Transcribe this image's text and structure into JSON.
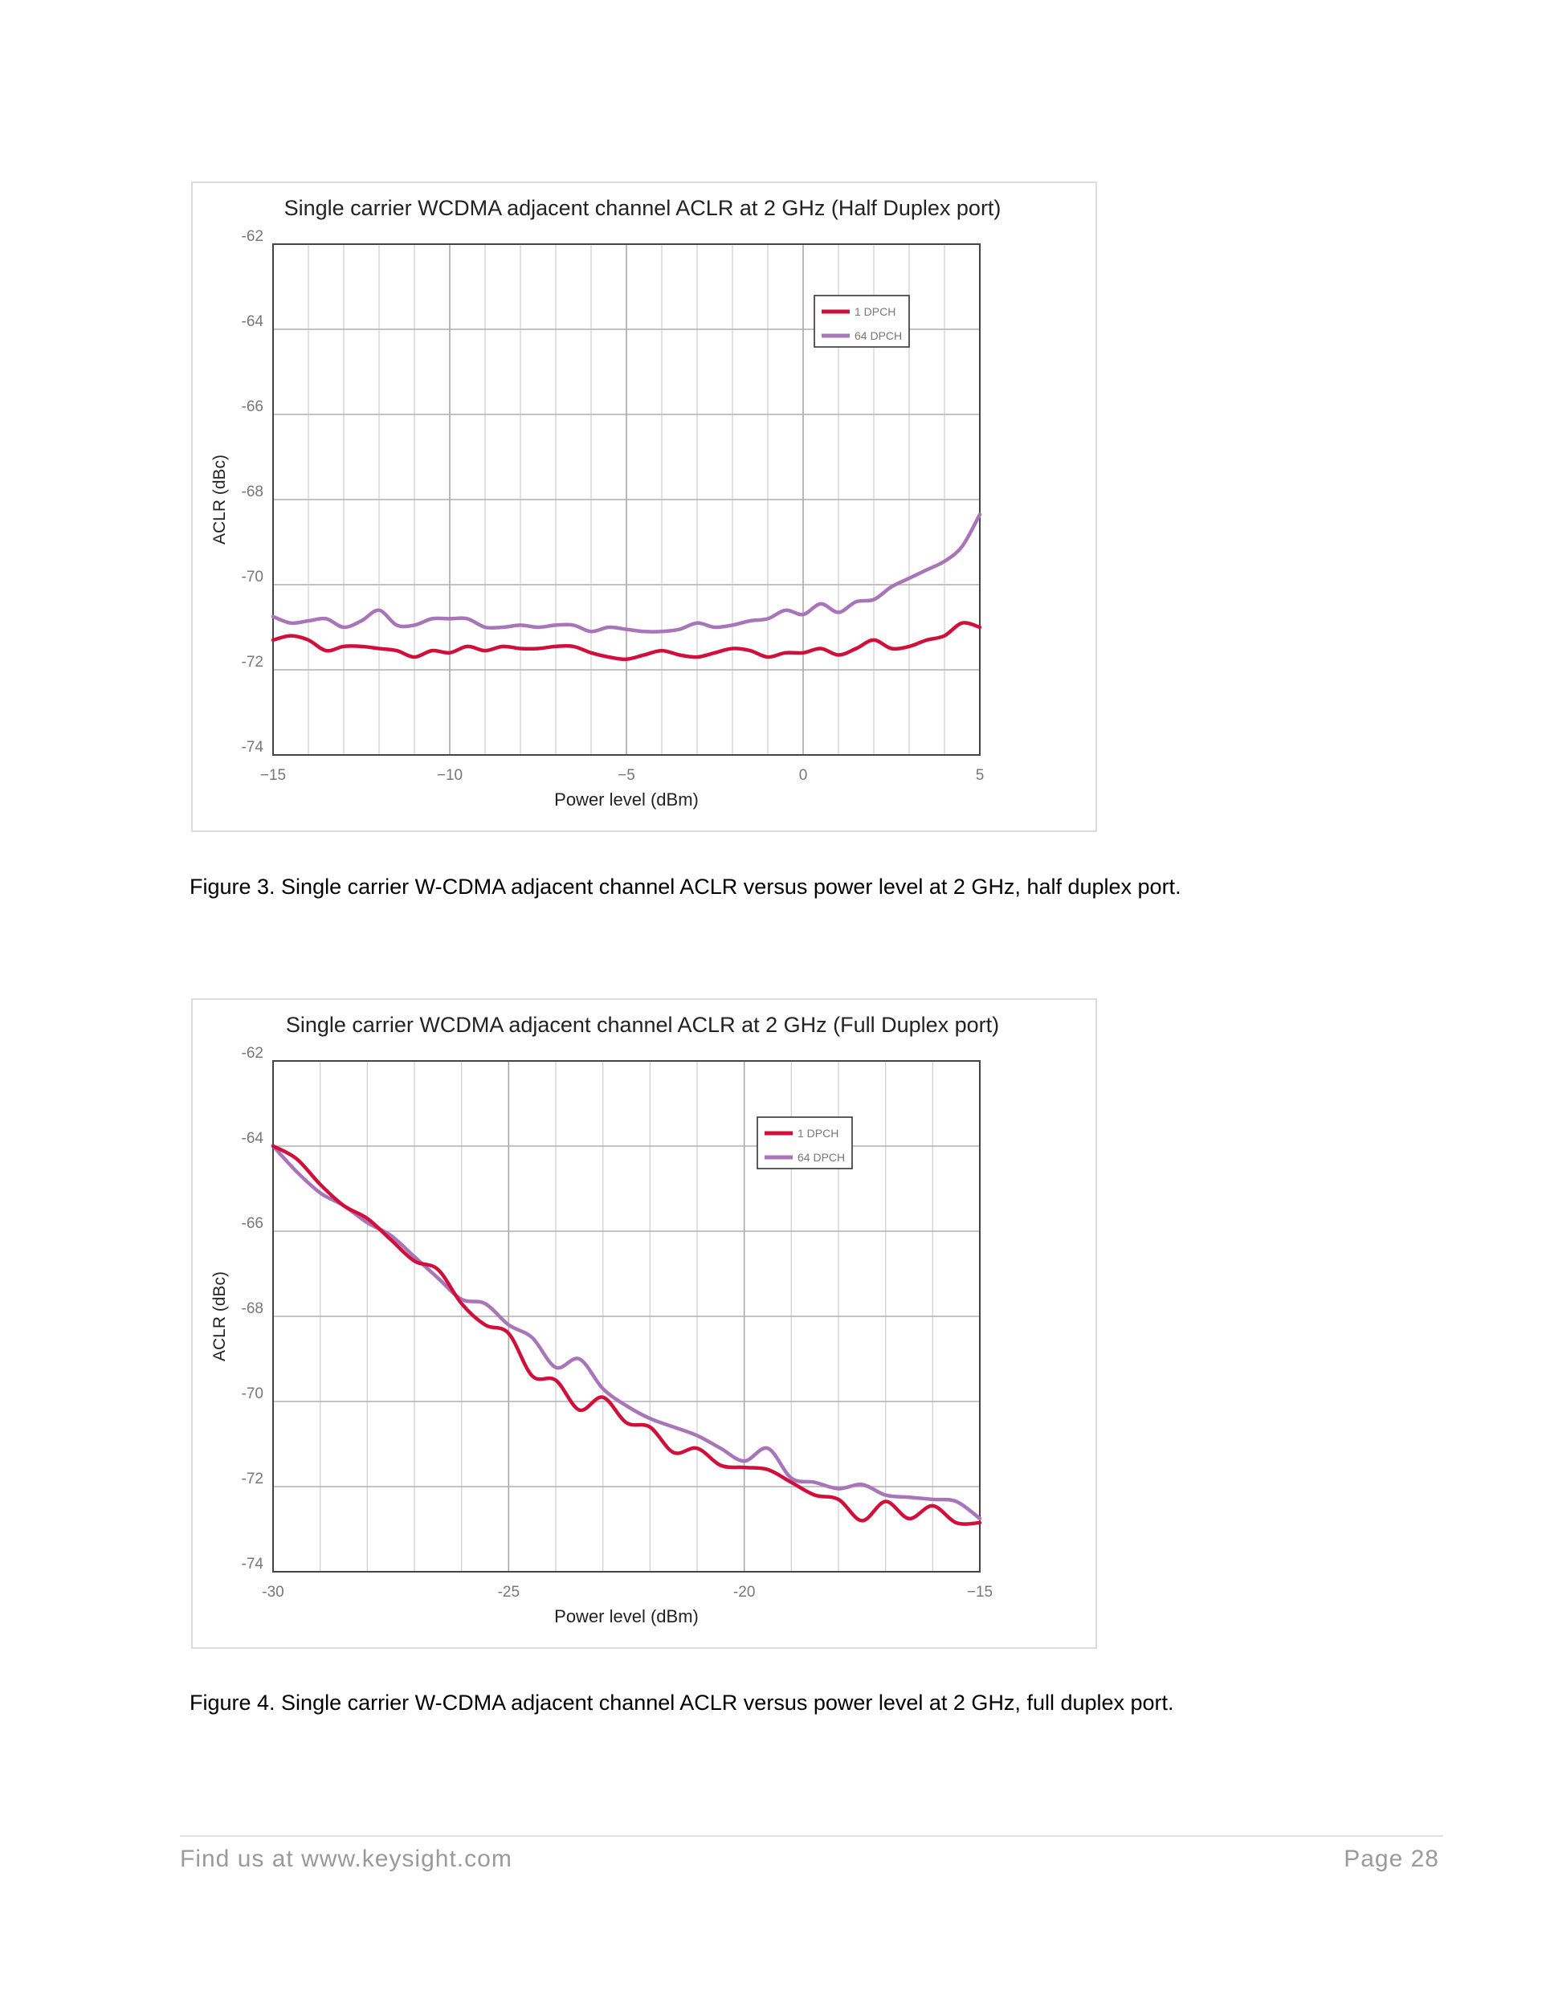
{
  "chart_data": [
    {
      "type": "line",
      "title": "Single carrier WCDMA adjacent channel ACLR at 2 GHz (Half Duplex port)",
      "xlabel": "Power level (dBm)",
      "ylabel": "ACLR (dBc)",
      "xlim": [
        -15,
        5
      ],
      "ylim": [
        -74,
        -62
      ],
      "xticks": [
        -15,
        -10,
        -5,
        0,
        5
      ],
      "xtick_labels": [
        "−15",
        "−10",
        "−5",
        "0",
        "5"
      ],
      "yticks": [
        -62,
        -64,
        -66,
        -68,
        -70,
        -72,
        -74
      ],
      "ytick_labels": [
        "-62",
        "-64",
        "-66",
        "-68",
        "-70",
        "-72",
        "-74"
      ],
      "grid": true,
      "legend_position": "top-right",
      "series": [
        {
          "name": "1 DPCH",
          "color": "#d0103a",
          "x": [
            -15,
            -14.5,
            -14,
            -13.5,
            -13,
            -12.5,
            -12,
            -11.5,
            -11,
            -10.5,
            -10,
            -9.5,
            -9,
            -8.5,
            -8,
            -7.5,
            -7,
            -6.5,
            -6,
            -5.5,
            -5,
            -4.5,
            -4,
            -3.5,
            -3,
            -2.5,
            -2,
            -1.5,
            -1,
            -0.5,
            0,
            0.5,
            1,
            1.5,
            2,
            2.5,
            3,
            3.5,
            4,
            4.5,
            5
          ],
          "y": [
            -71.3,
            -71.2,
            -71.3,
            -71.55,
            -71.45,
            -71.45,
            -71.5,
            -71.55,
            -71.7,
            -71.55,
            -71.6,
            -71.45,
            -71.55,
            -71.45,
            -71.5,
            -71.5,
            -71.45,
            -71.45,
            -71.6,
            -71.7,
            -71.75,
            -71.65,
            -71.55,
            -71.65,
            -71.7,
            -71.6,
            -71.5,
            -71.55,
            -71.7,
            -71.6,
            -71.6,
            -71.5,
            -71.65,
            -71.5,
            -71.3,
            -71.5,
            -71.45,
            -71.3,
            -71.2,
            -70.9,
            -71.0
          ]
        },
        {
          "name": "64 DPCH",
          "color": "#a875b8",
          "x": [
            -15,
            -14.5,
            -14,
            -13.5,
            -13,
            -12.5,
            -12,
            -11.5,
            -11,
            -10.5,
            -10,
            -9.5,
            -9,
            -8.5,
            -8,
            -7.5,
            -7,
            -6.5,
            -6,
            -5.5,
            -5,
            -4.5,
            -4,
            -3.5,
            -3,
            -2.5,
            -2,
            -1.5,
            -1,
            -0.5,
            0,
            0.5,
            1,
            1.5,
            2,
            2.5,
            3,
            3.5,
            4,
            4.5,
            5
          ],
          "y": [
            -70.75,
            -70.9,
            -70.85,
            -70.8,
            -71.0,
            -70.85,
            -70.6,
            -70.95,
            -70.95,
            -70.8,
            -70.8,
            -70.8,
            -71.0,
            -71.0,
            -70.95,
            -71.0,
            -70.95,
            -70.95,
            -71.1,
            -71.0,
            -71.05,
            -71.1,
            -71.1,
            -71.05,
            -70.9,
            -71.0,
            -70.95,
            -70.85,
            -70.8,
            -70.6,
            -70.7,
            -70.45,
            -70.65,
            -70.4,
            -70.35,
            -70.05,
            -69.85,
            -69.65,
            -69.45,
            -69.1,
            -68.35
          ]
        }
      ]
    },
    {
      "type": "line",
      "title": "Single carrier WCDMA adjacent channel ACLR at 2 GHz (Full Duplex port)",
      "xlabel": "Power level (dBm)",
      "ylabel": "ACLR (dBc)",
      "xlim": [
        -30,
        -15
      ],
      "ylim": [
        -74,
        -62
      ],
      "xticks": [
        -30,
        -25,
        -20,
        -15
      ],
      "xtick_labels": [
        "-30",
        "-25",
        "-20",
        "−15"
      ],
      "yticks": [
        -62,
        -64,
        -66,
        -68,
        -70,
        -72,
        -74
      ],
      "ytick_labels": [
        "-62",
        "-64",
        "-66",
        "-68",
        "-70",
        "-72",
        "-74"
      ],
      "grid": true,
      "legend_position": "top-right",
      "series": [
        {
          "name": "1 DPCH",
          "color": "#d0103a",
          "x": [
            -30,
            -29.5,
            -29,
            -28.5,
            -28,
            -27.5,
            -27,
            -26.5,
            -26,
            -25.5,
            -25,
            -24.5,
            -24,
            -23.5,
            -23,
            -22.5,
            -22,
            -21.5,
            -21,
            -20.5,
            -20,
            -19.5,
            -19,
            -18.5,
            -18,
            -17.5,
            -17,
            -16.5,
            -16,
            -15.5,
            -15
          ],
          "y": [
            -64.0,
            -64.3,
            -64.9,
            -65.4,
            -65.7,
            -66.2,
            -66.7,
            -66.9,
            -67.7,
            -68.2,
            -68.4,
            -69.4,
            -69.5,
            -70.2,
            -69.9,
            -70.5,
            -70.6,
            -71.2,
            -71.1,
            -71.5,
            -71.55,
            -71.6,
            -71.9,
            -72.2,
            -72.3,
            -72.8,
            -72.35,
            -72.75,
            -72.45,
            -72.85,
            -72.85
          ]
        },
        {
          "name": "64 DPCH",
          "color": "#a875b8",
          "x": [
            -30,
            -29.5,
            -29,
            -28.5,
            -28,
            -27.5,
            -27,
            -26.5,
            -26,
            -25.5,
            -25,
            -24.5,
            -24,
            -23.5,
            -23,
            -22.5,
            -22,
            -21.5,
            -21,
            -20.5,
            -20,
            -19.5,
            -19,
            -18.5,
            -18,
            -17.5,
            -17,
            -16.5,
            -16,
            -15.5,
            -15
          ],
          "y": [
            -64.0,
            -64.6,
            -65.1,
            -65.4,
            -65.8,
            -66.1,
            -66.6,
            -67.1,
            -67.6,
            -67.7,
            -68.2,
            -68.5,
            -69.2,
            -69.0,
            -69.7,
            -70.1,
            -70.4,
            -70.6,
            -70.8,
            -71.1,
            -71.4,
            -71.1,
            -71.8,
            -71.9,
            -72.05,
            -71.95,
            -72.2,
            -72.25,
            -72.3,
            -72.35,
            -72.75
          ]
        }
      ]
    }
  ],
  "captions": [
    "Figure 3. Single carrier W-CDMA adjacent channel ACLR versus power level at 2 GHz, half duplex port.",
    "Figure 4. Single carrier W-CDMA adjacent channel ACLR versus power level at 2 GHz, full duplex port."
  ],
  "footer": {
    "left": "Find us at www.keysight.com",
    "right": "Page 28"
  }
}
